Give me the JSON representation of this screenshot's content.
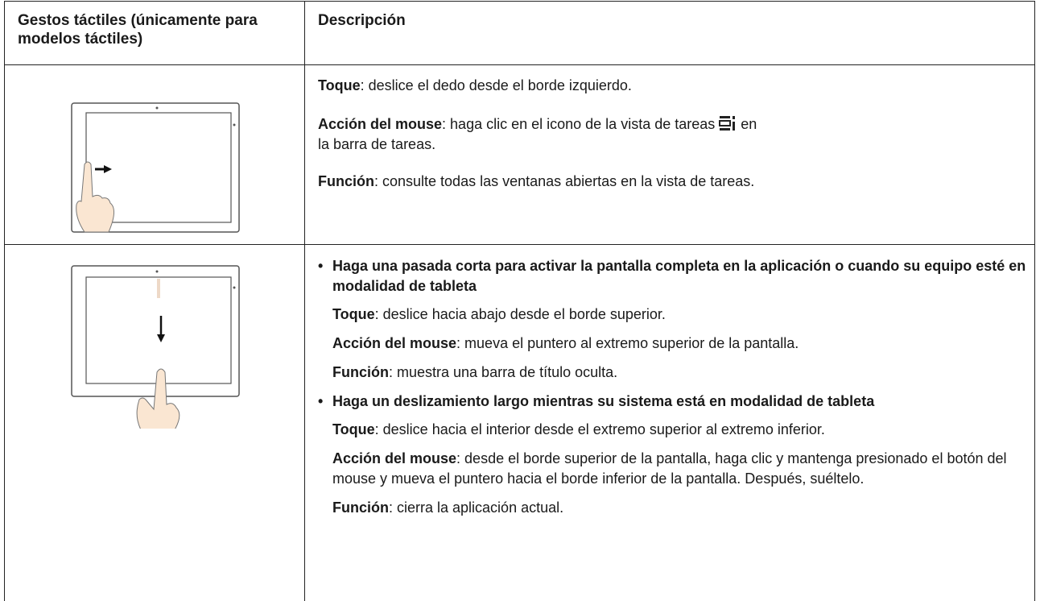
{
  "table": {
    "header": [
      "Gestos táctiles (únicamente para modelos táctiles)",
      "Descripción"
    ],
    "rows": [
      {
        "items": [
          {
            "label": "Toque",
            "text": ": deslice el dedo desde el borde izquierdo."
          },
          {
            "label": "Acción del mouse",
            "text": ": haga clic en el icono de la vista de tareas",
            "text_after": " en la barra de tareas."
          },
          {
            "label": "Función",
            "text": ": consulte todas las ventanas abiertas en la vista de tareas."
          }
        ]
      },
      {
        "bullets": [
          {
            "heading": "Haga una pasada corta para activar la pantalla completa en la aplicación o cuando su equipo esté en modalidad de tableta",
            "items": [
              {
                "label": "Toque",
                "text": ": deslice hacia abajo desde el borde superior."
              },
              {
                "label": "Acción del mouse",
                "text": ": mueva el puntero al extremo superior de la pantalla."
              },
              {
                "label": "Función",
                "text": ": muestra una barra de título oculta."
              }
            ]
          },
          {
            "heading": "Haga un deslizamiento largo mientras su sistema está en modalidad de tableta",
            "items": [
              {
                "label": "Toque",
                "text": ": deslice hacia el interior desde el extremo superior al extremo inferior."
              },
              {
                "label": "Acción del mouse",
                "text": ": desde el borde superior de la pantalla, haga clic y mantenga presionado el botón del mouse y mueva el puntero hacia el borde inferior de la pantalla. Después, suéltelo."
              },
              {
                "label": "Función",
                "text": ": cierra la aplicación actual."
              }
            ]
          }
        ]
      }
    ]
  }
}
